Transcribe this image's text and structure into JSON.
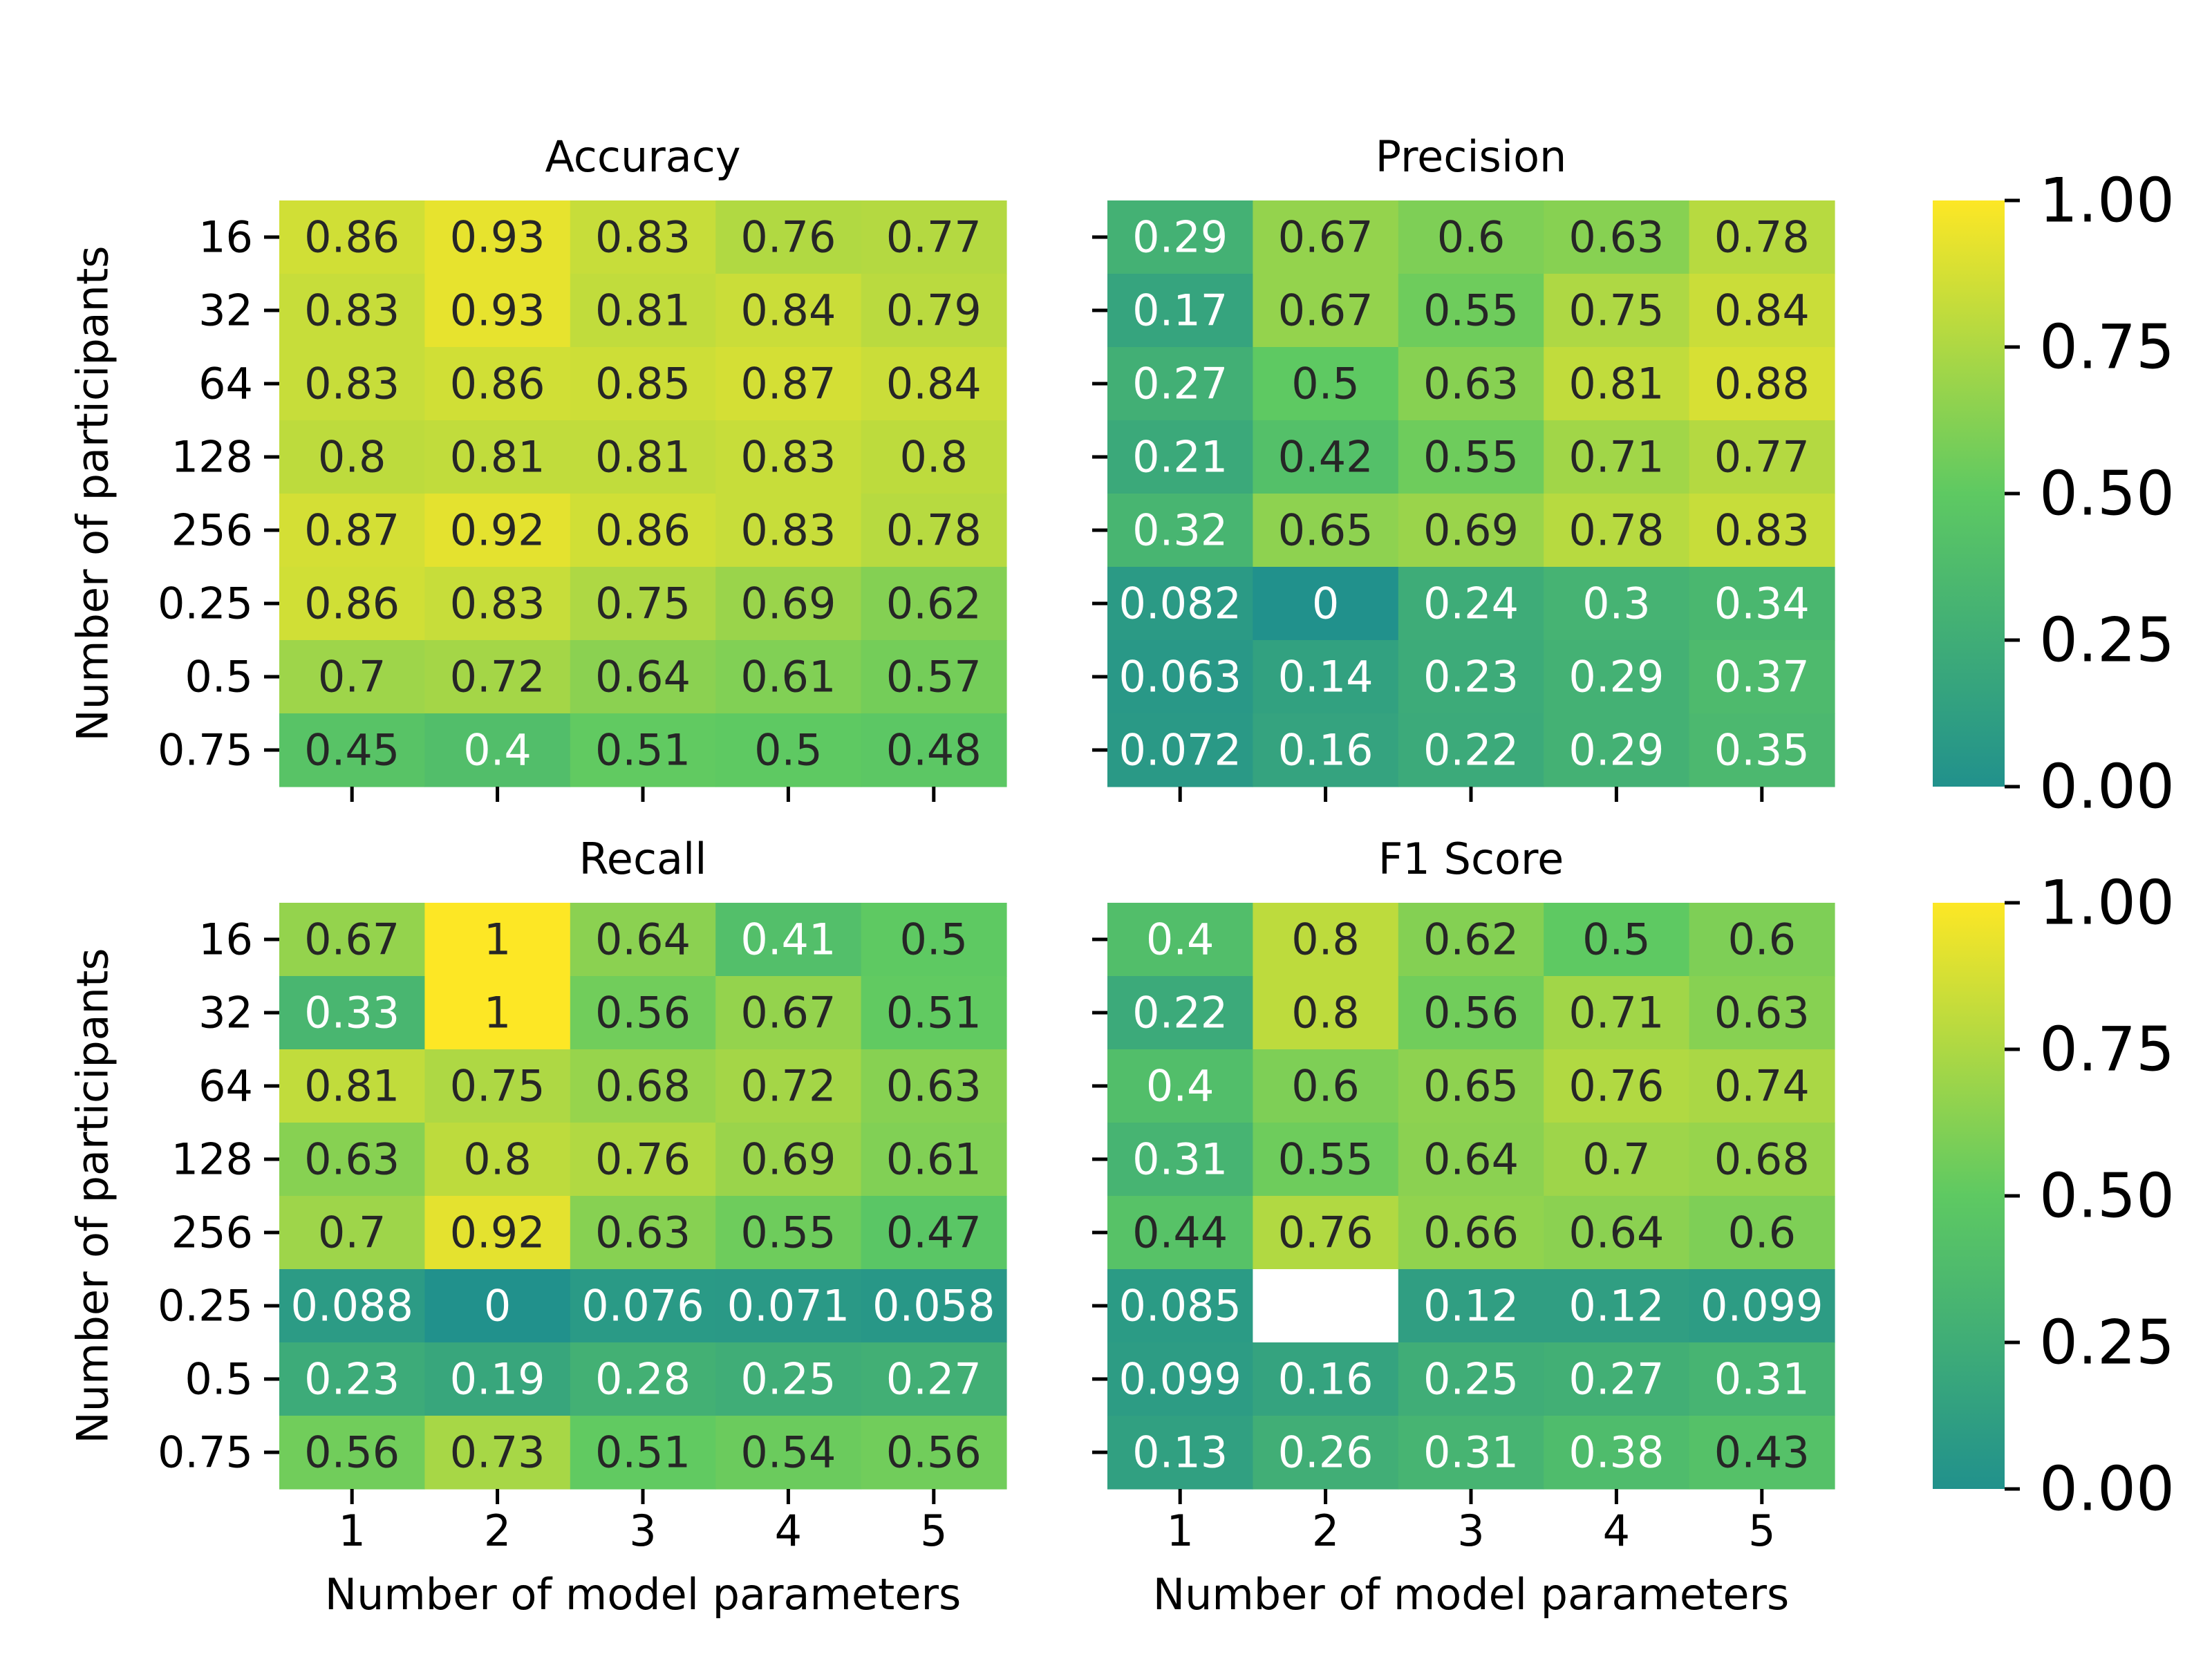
{
  "chart_data": {
    "type": "heatmap",
    "figure_kind": "2x2 grid of annotated heatmaps with two colorbars",
    "colormap": {
      "low_color": "#21918c",
      "mid_color": "#5ec962",
      "high_color": "#fde725"
    },
    "missing_cell_color": "#ffffff",
    "x_tick_labels": [
      "1",
      "2",
      "3",
      "4",
      "5"
    ],
    "y_tick_labels": [
      "16",
      "32",
      "64",
      "128",
      "256",
      "0.25",
      "0.5",
      "0.75"
    ],
    "xlabel": "Number of model parameters",
    "ylabel": "Number of participants",
    "zlim": [
      0,
      1
    ],
    "colorbars": [
      {
        "ticks": [
          "1.00",
          "0.75",
          "0.50",
          "0.25",
          "0.00"
        ],
        "values": [
          1.0,
          0.75,
          0.5,
          0.25,
          0.0
        ]
      },
      {
        "ticks": [
          "1.00",
          "0.75",
          "0.50",
          "0.25",
          "0.00"
        ],
        "values": [
          1.0,
          0.75,
          0.5,
          0.25,
          0.0
        ]
      }
    ],
    "panels": [
      {
        "title": "Accuracy",
        "values": [
          [
            0.86,
            0.93,
            0.83,
            0.76,
            0.77
          ],
          [
            0.83,
            0.93,
            0.81,
            0.84,
            0.79
          ],
          [
            0.83,
            0.86,
            0.85,
            0.87,
            0.84
          ],
          [
            0.8,
            0.81,
            0.81,
            0.83,
            0.8
          ],
          [
            0.87,
            0.92,
            0.86,
            0.83,
            0.78
          ],
          [
            0.86,
            0.83,
            0.75,
            0.69,
            0.62
          ],
          [
            0.7,
            0.72,
            0.64,
            0.61,
            0.57
          ],
          [
            0.45,
            0.4,
            0.51,
            0.5,
            0.48
          ]
        ],
        "labels": [
          [
            "0.86",
            "0.93",
            "0.83",
            "0.76",
            "0.77"
          ],
          [
            "0.83",
            "0.93",
            "0.81",
            "0.84",
            "0.79"
          ],
          [
            "0.83",
            "0.86",
            "0.85",
            "0.87",
            "0.84"
          ],
          [
            "0.8",
            "0.81",
            "0.81",
            "0.83",
            "0.8"
          ],
          [
            "0.87",
            "0.92",
            "0.86",
            "0.83",
            "0.78"
          ],
          [
            "0.86",
            "0.83",
            "0.75",
            "0.69",
            "0.62"
          ],
          [
            "0.7",
            "0.72",
            "0.64",
            "0.61",
            "0.57"
          ],
          [
            "0.45",
            "0.4",
            "0.51",
            "0.5",
            "0.48"
          ]
        ]
      },
      {
        "title": "Precision",
        "values": [
          [
            0.29,
            0.67,
            0.6,
            0.63,
            0.78
          ],
          [
            0.17,
            0.67,
            0.55,
            0.75,
            0.84
          ],
          [
            0.27,
            0.5,
            0.63,
            0.81,
            0.88
          ],
          [
            0.21,
            0.42,
            0.55,
            0.71,
            0.77
          ],
          [
            0.32,
            0.65,
            0.69,
            0.78,
            0.83
          ],
          [
            0.082,
            0,
            0.24,
            0.3,
            0.34
          ],
          [
            0.063,
            0.14,
            0.23,
            0.29,
            0.37
          ],
          [
            0.072,
            0.16,
            0.22,
            0.29,
            0.35
          ]
        ],
        "labels": [
          [
            "0.29",
            "0.67",
            "0.6",
            "0.63",
            "0.78"
          ],
          [
            "0.17",
            "0.67",
            "0.55",
            "0.75",
            "0.84"
          ],
          [
            "0.27",
            "0.5",
            "0.63",
            "0.81",
            "0.88"
          ],
          [
            "0.21",
            "0.42",
            "0.55",
            "0.71",
            "0.77"
          ],
          [
            "0.32",
            "0.65",
            "0.69",
            "0.78",
            "0.83"
          ],
          [
            "0.082",
            "0",
            "0.24",
            "0.3",
            "0.34"
          ],
          [
            "0.063",
            "0.14",
            "0.23",
            "0.29",
            "0.37"
          ],
          [
            "0.072",
            "0.16",
            "0.22",
            "0.29",
            "0.35"
          ]
        ]
      },
      {
        "title": "Recall",
        "values": [
          [
            0.67,
            1,
            0.64,
            0.41,
            0.5
          ],
          [
            0.33,
            1,
            0.56,
            0.67,
            0.51
          ],
          [
            0.81,
            0.75,
            0.68,
            0.72,
            0.63
          ],
          [
            0.63,
            0.8,
            0.76,
            0.69,
            0.61
          ],
          [
            0.7,
            0.92,
            0.63,
            0.55,
            0.47
          ],
          [
            0.088,
            0,
            0.076,
            0.071,
            0.058
          ],
          [
            0.23,
            0.19,
            0.28,
            0.25,
            0.27
          ],
          [
            0.56,
            0.73,
            0.51,
            0.54,
            0.56
          ]
        ],
        "labels": [
          [
            "0.67",
            "1",
            "0.64",
            "0.41",
            "0.5"
          ],
          [
            "0.33",
            "1",
            "0.56",
            "0.67",
            "0.51"
          ],
          [
            "0.81",
            "0.75",
            "0.68",
            "0.72",
            "0.63"
          ],
          [
            "0.63",
            "0.8",
            "0.76",
            "0.69",
            "0.61"
          ],
          [
            "0.7",
            "0.92",
            "0.63",
            "0.55",
            "0.47"
          ],
          [
            "0.088",
            "0",
            "0.076",
            "0.071",
            "0.058"
          ],
          [
            "0.23",
            "0.19",
            "0.28",
            "0.25",
            "0.27"
          ],
          [
            "0.56",
            "0.73",
            "0.51",
            "0.54",
            "0.56"
          ]
        ]
      },
      {
        "title": "F1 Score",
        "values": [
          [
            0.4,
            0.8,
            0.62,
            0.5,
            0.6
          ],
          [
            0.22,
            0.8,
            0.56,
            0.71,
            0.63
          ],
          [
            0.4,
            0.6,
            0.65,
            0.76,
            0.74
          ],
          [
            0.31,
            0.55,
            0.64,
            0.7,
            0.68
          ],
          [
            0.44,
            0.76,
            0.66,
            0.64,
            0.6
          ],
          [
            0.085,
            null,
            0.12,
            0.12,
            0.099
          ],
          [
            0.099,
            0.16,
            0.25,
            0.27,
            0.31
          ],
          [
            0.13,
            0.26,
            0.31,
            0.38,
            0.43
          ]
        ],
        "labels": [
          [
            "0.4",
            "0.8",
            "0.62",
            "0.5",
            "0.6"
          ],
          [
            "0.22",
            "0.8",
            "0.56",
            "0.71",
            "0.63"
          ],
          [
            "0.4",
            "0.6",
            "0.65",
            "0.76",
            "0.74"
          ],
          [
            "0.31",
            "0.55",
            "0.64",
            "0.7",
            "0.68"
          ],
          [
            "0.44",
            "0.76",
            "0.66",
            "0.64",
            "0.6"
          ],
          [
            "0.085",
            "",
            "0.12",
            "0.12",
            "0.099"
          ],
          [
            "0.099",
            "0.16",
            "0.25",
            "0.27",
            "0.31"
          ],
          [
            "0.13",
            "0.26",
            "0.31",
            "0.38",
            "0.43"
          ]
        ]
      }
    ]
  }
}
